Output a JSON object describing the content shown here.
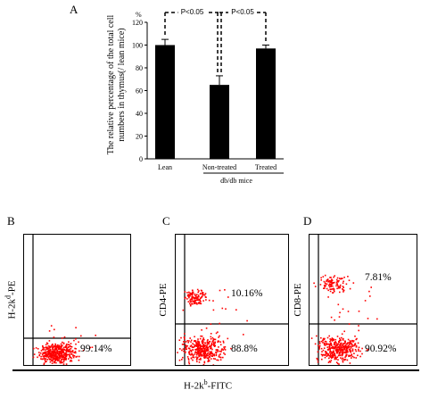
{
  "panel_labels": {
    "a": "A",
    "b": "B",
    "c": "C",
    "d": "D"
  },
  "chart_data": [
    {
      "type": "bar",
      "panel": "A",
      "categories": [
        "Lean",
        "Non-treated",
        "Treated"
      ],
      "group_label": "db/db mice",
      "values": [
        100,
        65,
        97
      ],
      "errors": [
        5,
        8,
        3
      ],
      "ylabel": "The relative percentage of the total cell numbers in thymus(/ lean mice)",
      "yunit": "%",
      "ylim": [
        0,
        120
      ],
      "yticks": [
        0,
        20,
        40,
        60,
        80,
        100,
        120
      ],
      "bar_color": "#000000",
      "significance": [
        {
          "from": "Lean",
          "to": "Non-treated",
          "label": "P<0.05"
        },
        {
          "from": "Non-treated",
          "to": "Treated",
          "label": "P<0.05"
        }
      ]
    },
    {
      "type": "scatter",
      "panel": "B",
      "ylabel": "H-2k^d-PE",
      "quadrant_labels": [
        "99.14%"
      ],
      "point_color": "#ff0000"
    },
    {
      "type": "scatter",
      "panel": "C",
      "ylabel": "CD4-PE",
      "quadrant_labels": [
        "10.16%",
        "88.8%"
      ],
      "point_color": "#ff0000"
    },
    {
      "type": "scatter",
      "panel": "D",
      "ylabel": "CD8-PE",
      "quadrant_labels": [
        "7.81%",
        "90.92%"
      ],
      "point_color": "#ff0000"
    }
  ],
  "shared_xlabel": {
    "main": "H-2k",
    "sup": "b",
    "suffix": "-FITC"
  }
}
